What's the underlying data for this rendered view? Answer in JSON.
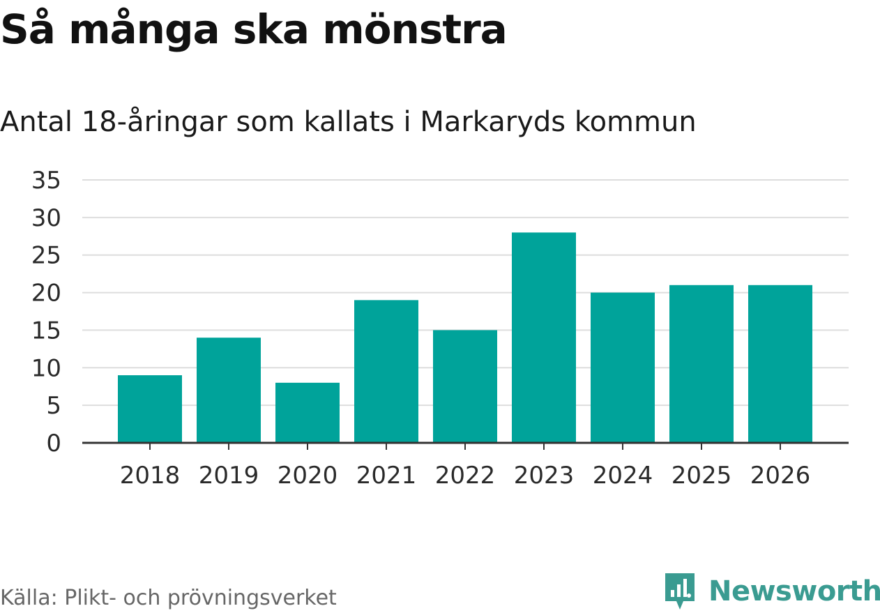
{
  "title": "Så många ska mönstra",
  "subtitle": "Antal 18-åringar som kallats i Markaryds kommun",
  "source": "Källa: Plikt- och prövningsverket",
  "brand": {
    "name": "Newsworthy",
    "icon": "newsworthy-logo-icon",
    "color": "#3a9b91"
  },
  "chart_data": {
    "type": "bar",
    "categories": [
      "2018",
      "2019",
      "2020",
      "2021",
      "2022",
      "2023",
      "2024",
      "2025",
      "2026"
    ],
    "values": [
      9,
      14,
      8,
      19,
      15,
      28,
      20,
      21,
      21
    ],
    "ylim": [
      0,
      35
    ],
    "yticks": [
      0,
      5,
      10,
      15,
      20,
      25,
      30,
      35
    ],
    "grid": true,
    "bar_color": "#00a39a",
    "grid_color": "#dddddd",
    "axis_color": "#333333"
  }
}
